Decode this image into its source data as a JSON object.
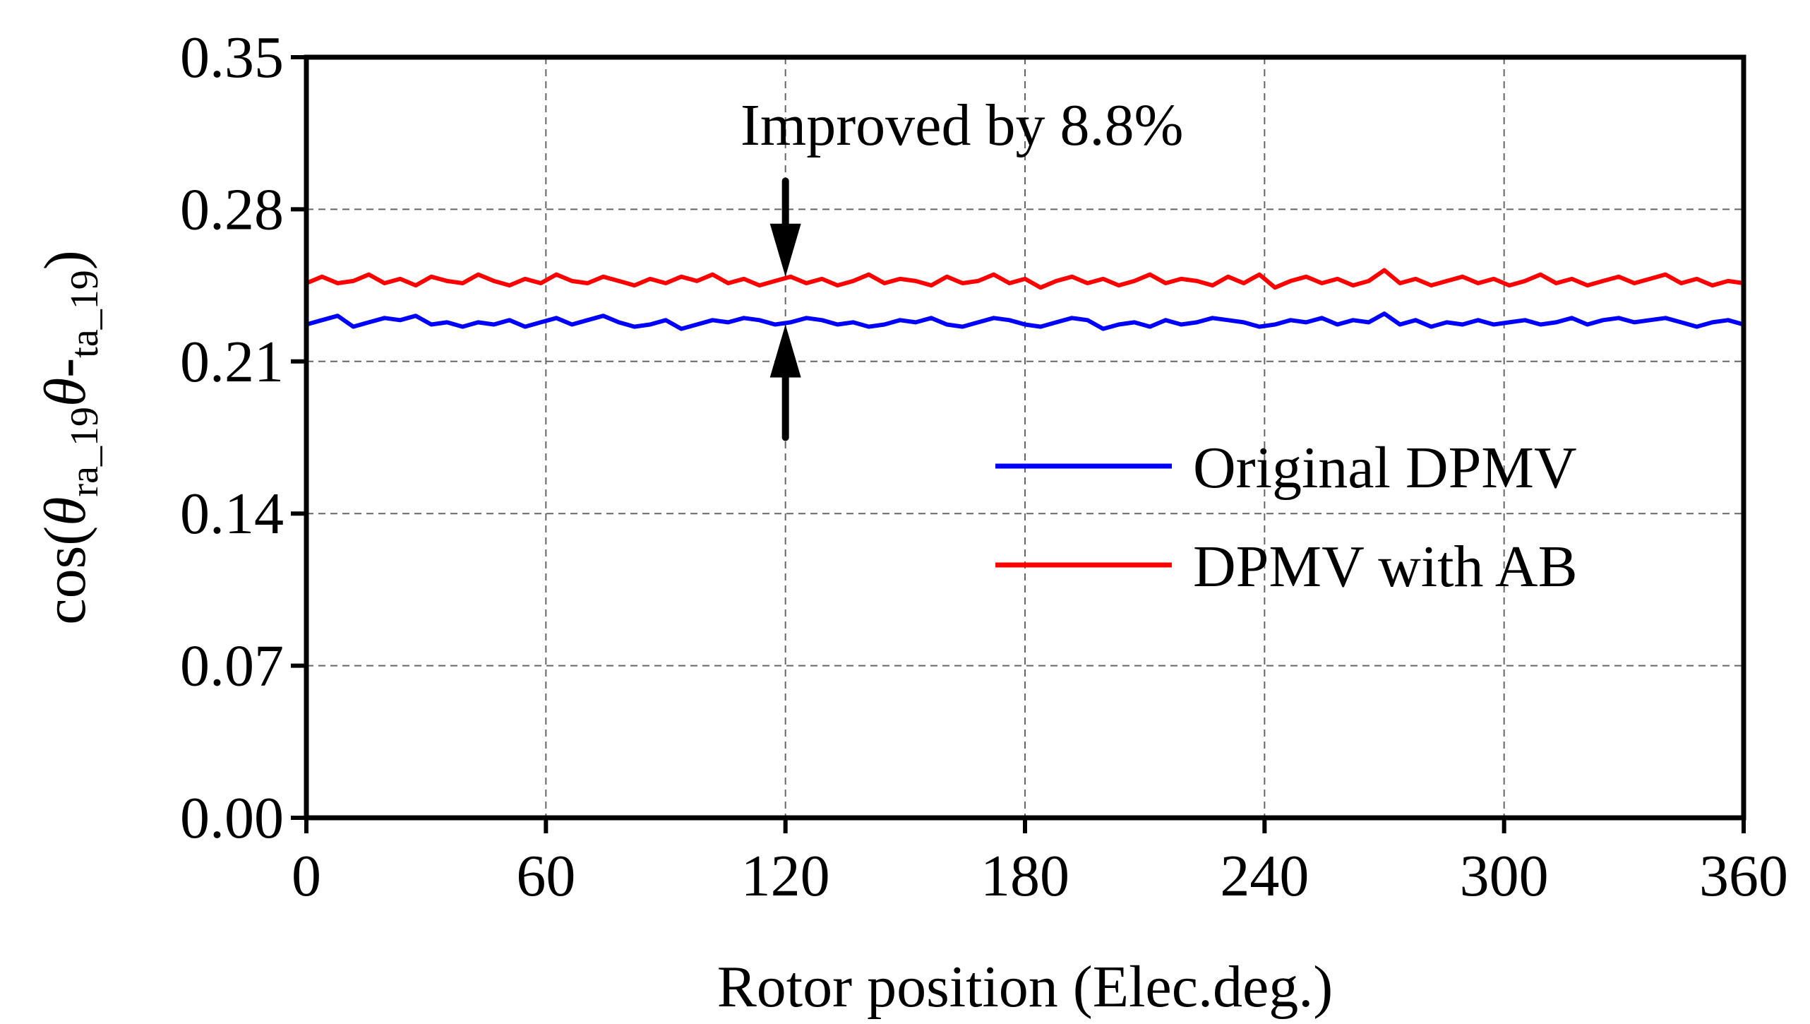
{
  "chart_data": {
    "type": "line",
    "title": "",
    "xlabel": "Rotor position (Elec.deg.)",
    "ylabel": {
      "prefix": "cos(",
      "theta": "θ",
      "sub1": "ra_19",
      "minus": "-",
      "sub2": "ta_19",
      "suffix": ")"
    },
    "xlim": [
      0,
      360
    ],
    "ylim": [
      0,
      0.35
    ],
    "xticks": [
      0,
      60,
      120,
      180,
      240,
      300,
      360
    ],
    "xtick_labels": [
      "0",
      "60",
      "120",
      "180",
      "240",
      "300",
      "360"
    ],
    "yticks": [
      0,
      0.07,
      0.14,
      0.21,
      0.28,
      0.35
    ],
    "ytick_labels": [
      "0.00",
      "0.07",
      "0.14",
      "0.21",
      "0.28",
      "0.35"
    ],
    "grid": true,
    "legend_position": "center-right",
    "series": [
      {
        "name": "Original DPMV",
        "color": "#0000ff",
        "mean": 0.227,
        "values": [
          0.227,
          0.229,
          0.231,
          0.226,
          0.228,
          0.23,
          0.229,
          0.231,
          0.227,
          0.228,
          0.226,
          0.228,
          0.227,
          0.229,
          0.226,
          0.228,
          0.23,
          0.227,
          0.229,
          0.231,
          0.228,
          0.226,
          0.227,
          0.229,
          0.225,
          0.227,
          0.229,
          0.228,
          0.23,
          0.229,
          0.227,
          0.228,
          0.23,
          0.229,
          0.227,
          0.228,
          0.226,
          0.227,
          0.229,
          0.228,
          0.23,
          0.227,
          0.226,
          0.228,
          0.23,
          0.229,
          0.227,
          0.226,
          0.228,
          0.23,
          0.229,
          0.225,
          0.227,
          0.228,
          0.226,
          0.229,
          0.227,
          0.228,
          0.23,
          0.229,
          0.228,
          0.226,
          0.227,
          0.229,
          0.228,
          0.23,
          0.227,
          0.229,
          0.228,
          0.232,
          0.227,
          0.229,
          0.226,
          0.228,
          0.227,
          0.229,
          0.227,
          0.228,
          0.229,
          0.227,
          0.228,
          0.23,
          0.227,
          0.229,
          0.23,
          0.228,
          0.229,
          0.23,
          0.228,
          0.226,
          0.228,
          0.229,
          0.227
        ]
      },
      {
        "name": "DPMV with AB",
        "color": "#ff0000",
        "mean": 0.247,
        "values": [
          0.246,
          0.249,
          0.246,
          0.247,
          0.25,
          0.246,
          0.248,
          0.245,
          0.249,
          0.247,
          0.246,
          0.25,
          0.247,
          0.245,
          0.248,
          0.246,
          0.25,
          0.247,
          0.246,
          0.249,
          0.247,
          0.245,
          0.248,
          0.246,
          0.249,
          0.247,
          0.25,
          0.246,
          0.248,
          0.245,
          0.247,
          0.249,
          0.246,
          0.248,
          0.245,
          0.247,
          0.25,
          0.246,
          0.248,
          0.247,
          0.245,
          0.249,
          0.246,
          0.247,
          0.25,
          0.246,
          0.248,
          0.244,
          0.247,
          0.249,
          0.246,
          0.248,
          0.245,
          0.247,
          0.25,
          0.246,
          0.248,
          0.247,
          0.245,
          0.249,
          0.246,
          0.25,
          0.244,
          0.247,
          0.249,
          0.246,
          0.248,
          0.245,
          0.247,
          0.252,
          0.246,
          0.248,
          0.245,
          0.247,
          0.249,
          0.246,
          0.248,
          0.245,
          0.247,
          0.25,
          0.246,
          0.248,
          0.245,
          0.247,
          0.249,
          0.246,
          0.248,
          0.25,
          0.246,
          0.248,
          0.245,
          0.247,
          0.246
        ]
      }
    ],
    "annotation": {
      "text": "Improved by 8.8%",
      "x": 120,
      "arrow_top_from": 0.293,
      "arrow_top_to": 0.249,
      "arrow_bottom_from": 0.175,
      "arrow_bottom_to": 0.227
    }
  }
}
